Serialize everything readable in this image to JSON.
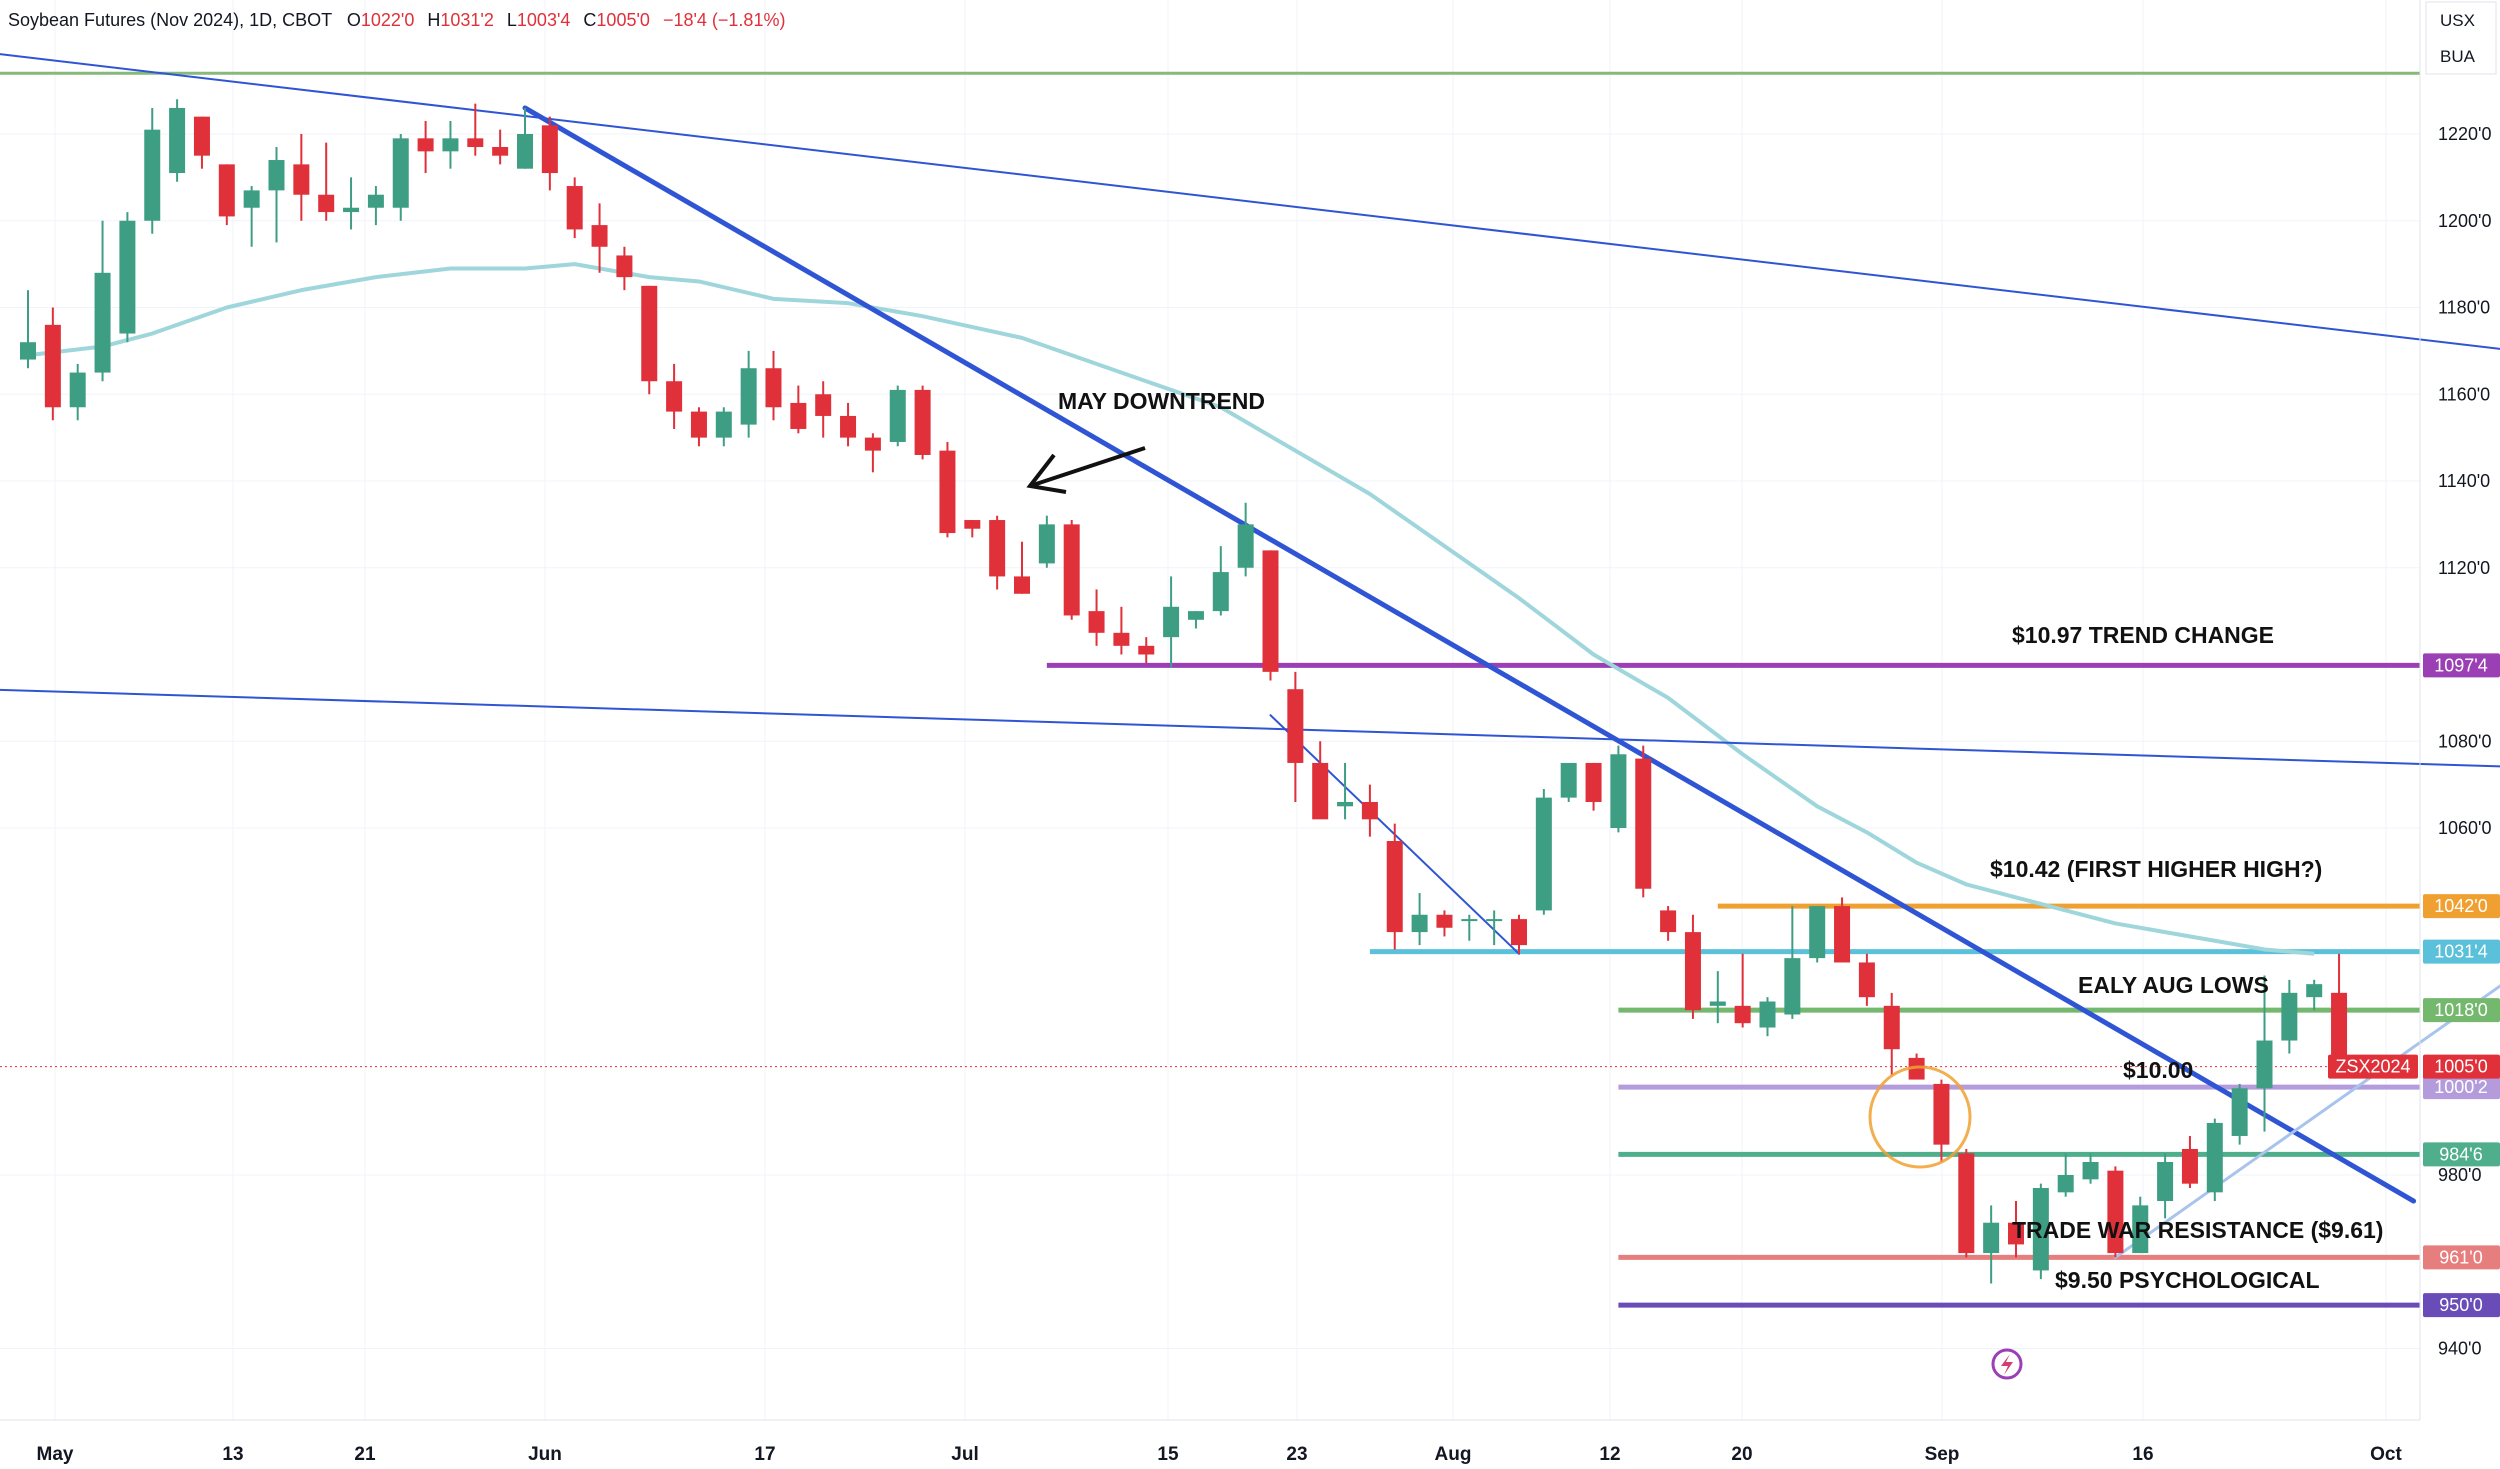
{
  "header": {
    "symbol": "Soybean Futures (Nov 2024), 1D, CBOT",
    "open_label": "O",
    "open": "1022'0",
    "high_label": "H",
    "high": "1031'2",
    "low_label": "L",
    "low": "1003'4",
    "close_label": "C",
    "close": "1005'0",
    "change": "−18'4 (−1.81%)"
  },
  "corner": {
    "currency": "USX",
    "unit": "BUA"
  },
  "colors": {
    "up": "#26a17b",
    "up_fill": "#3e9e84",
    "down": "#e0303a",
    "trend_blue": "#2f55d4",
    "ma": "#9fd6dc",
    "light_blue": "#a8c4ec",
    "purple": "#9b3fb5",
    "orange": "#f0a030",
    "cyan": "#5bc0d9",
    "green_line": "#74b86e",
    "lavender": "#b49cdc",
    "teal": "#4fae8c",
    "salmon": "#e77e7e",
    "violet": "#6a4cb8",
    "top_green": "#86b97a"
  },
  "chart_data": {
    "type": "candlestick",
    "y_axis_labels": [
      "1220'0",
      "1200'0",
      "1180'0",
      "1160'0",
      "1140'0",
      "1120'0",
      "1080'0",
      "1060'0",
      "980'0",
      "940'0"
    ],
    "y_axis_values": [
      1220,
      1200,
      1180,
      1160,
      1140,
      1120,
      1080,
      1060,
      980,
      940
    ],
    "x_axis_labels": [
      "May",
      "13",
      "21",
      "Jun",
      "17",
      "Jul",
      "15",
      "23",
      "Aug",
      "12",
      "20",
      "Sep",
      "16",
      "Oct"
    ],
    "x_axis_dates": [
      "2024-05-01",
      "2024-05-13",
      "2024-05-21",
      "2024-06-03",
      "2024-06-17",
      "2024-07-01",
      "2024-07-15",
      "2024-07-23",
      "2024-08-01",
      "2024-08-12",
      "2024-08-20",
      "2024-09-03",
      "2024-09-16",
      "2024-10-01"
    ],
    "candles": [
      {
        "o": 1168,
        "h": 1184,
        "l": 1166,
        "c": 1172
      },
      {
        "o": 1176,
        "h": 1180,
        "l": 1154,
        "c": 1157
      },
      {
        "o": 1157,
        "h": 1167,
        "l": 1154,
        "c": 1165
      },
      {
        "o": 1165,
        "h": 1200,
        "l": 1163,
        "c": 1188
      },
      {
        "o": 1174,
        "h": 1202,
        "l": 1172,
        "c": 1200
      },
      {
        "o": 1200,
        "h": 1226,
        "l": 1197,
        "c": 1221
      },
      {
        "o": 1211,
        "h": 1228,
        "l": 1209,
        "c": 1226
      },
      {
        "o": 1224,
        "h": 1224,
        "l": 1212,
        "c": 1215
      },
      {
        "o": 1213,
        "h": 1213,
        "l": 1199,
        "c": 1201
      },
      {
        "o": 1203,
        "h": 1208,
        "l": 1194,
        "c": 1207
      },
      {
        "o": 1207,
        "h": 1217,
        "l": 1195,
        "c": 1214
      },
      {
        "o": 1213,
        "h": 1220,
        "l": 1200,
        "c": 1206
      },
      {
        "o": 1206,
        "h": 1218,
        "l": 1200,
        "c": 1202
      },
      {
        "o": 1202,
        "h": 1210,
        "l": 1198,
        "c": 1203
      },
      {
        "o": 1203,
        "h": 1208,
        "l": 1199,
        "c": 1206
      },
      {
        "o": 1203,
        "h": 1220,
        "l": 1200,
        "c": 1219
      },
      {
        "o": 1219,
        "h": 1223,
        "l": 1211,
        "c": 1216
      },
      {
        "o": 1216,
        "h": 1223,
        "l": 1212,
        "c": 1219
      },
      {
        "o": 1219,
        "h": 1227,
        "l": 1215,
        "c": 1217
      },
      {
        "o": 1217,
        "h": 1221,
        "l": 1213,
        "c": 1215
      },
      {
        "o": 1212,
        "h": 1226,
        "l": 1212,
        "c": 1220
      },
      {
        "o": 1222,
        "h": 1224,
        "l": 1207,
        "c": 1211
      },
      {
        "o": 1208,
        "h": 1210,
        "l": 1196,
        "c": 1198
      },
      {
        "o": 1199,
        "h": 1204,
        "l": 1188,
        "c": 1194
      },
      {
        "o": 1192,
        "h": 1194,
        "l": 1184,
        "c": 1187
      },
      {
        "o": 1185,
        "h": 1185,
        "l": 1160,
        "c": 1163
      },
      {
        "o": 1163,
        "h": 1167,
        "l": 1152,
        "c": 1156
      },
      {
        "o": 1156,
        "h": 1157,
        "l": 1148,
        "c": 1150
      },
      {
        "o": 1150,
        "h": 1157,
        "l": 1148,
        "c": 1156
      },
      {
        "o": 1153,
        "h": 1170,
        "l": 1150,
        "c": 1166
      },
      {
        "o": 1166,
        "h": 1170,
        "l": 1154,
        "c": 1157
      },
      {
        "o": 1158,
        "h": 1162,
        "l": 1151,
        "c": 1152
      },
      {
        "o": 1160,
        "h": 1163,
        "l": 1150,
        "c": 1155
      },
      {
        "o": 1155,
        "h": 1158,
        "l": 1148,
        "c": 1150
      },
      {
        "o": 1150,
        "h": 1151,
        "l": 1142,
        "c": 1147
      },
      {
        "o": 1149,
        "h": 1162,
        "l": 1148,
        "c": 1161
      },
      {
        "o": 1161,
        "h": 1162,
        "l": 1145,
        "c": 1146
      },
      {
        "o": 1147,
        "h": 1149,
        "l": 1127,
        "c": 1128
      },
      {
        "o": 1131,
        "h": 1131,
        "l": 1127,
        "c": 1129
      },
      {
        "o": 1131,
        "h": 1132,
        "l": 1115,
        "c": 1118
      },
      {
        "o": 1118,
        "h": 1126,
        "l": 1114,
        "c": 1114
      },
      {
        "o": 1121,
        "h": 1132,
        "l": 1120,
        "c": 1130
      },
      {
        "o": 1130,
        "h": 1131,
        "l": 1108,
        "c": 1109
      },
      {
        "o": 1110,
        "h": 1115,
        "l": 1102,
        "c": 1105
      },
      {
        "o": 1105,
        "h": 1111,
        "l": 1100,
        "c": 1102
      },
      {
        "o": 1102,
        "h": 1104,
        "l": 1098,
        "c": 1100
      },
      {
        "o": 1104,
        "h": 1118,
        "l": 1097,
        "c": 1111
      },
      {
        "o": 1108,
        "h": 1110,
        "l": 1106,
        "c": 1110
      },
      {
        "o": 1110,
        "h": 1125,
        "l": 1109,
        "c": 1119
      },
      {
        "o": 1120,
        "h": 1135,
        "l": 1118,
        "c": 1130
      },
      {
        "o": 1124,
        "h": 1124,
        "l": 1094,
        "c": 1096
      },
      {
        "o": 1092,
        "h": 1096,
        "l": 1066,
        "c": 1075
      },
      {
        "o": 1075,
        "h": 1080,
        "l": 1063,
        "c": 1062
      },
      {
        "o": 1065,
        "h": 1075,
        "l": 1062,
        "c": 1066
      },
      {
        "o": 1066,
        "h": 1070,
        "l": 1058,
        "c": 1062
      },
      {
        "o": 1057,
        "h": 1061,
        "l": 1032,
        "c": 1036
      },
      {
        "o": 1036,
        "h": 1045,
        "l": 1033,
        "c": 1040
      },
      {
        "o": 1040,
        "h": 1041,
        "l": 1035,
        "c": 1037
      },
      {
        "o": 1039,
        "h": 1040,
        "l": 1034,
        "c": 1039
      },
      {
        "o": 1039,
        "h": 1041,
        "l": 1033,
        "c": 1039
      },
      {
        "o": 1039,
        "h": 1040,
        "l": 1031,
        "c": 1033
      },
      {
        "o": 1041,
        "h": 1069,
        "l": 1040,
        "c": 1067
      },
      {
        "o": 1067,
        "h": 1074,
        "l": 1066,
        "c": 1075
      },
      {
        "o": 1075,
        "h": 1075,
        "l": 1064,
        "c": 1066
      },
      {
        "o": 1060,
        "h": 1079,
        "l": 1059,
        "c": 1077
      },
      {
        "o": 1076,
        "h": 1079,
        "l": 1044,
        "c": 1046
      },
      {
        "o": 1041,
        "h": 1042,
        "l": 1034,
        "c": 1036
      },
      {
        "o": 1036,
        "h": 1040,
        "l": 1016,
        "c": 1018
      },
      {
        "o": 1019,
        "h": 1027,
        "l": 1015,
        "c": 1020
      },
      {
        "o": 1019,
        "h": 1031,
        "l": 1014,
        "c": 1015
      },
      {
        "o": 1014,
        "h": 1021,
        "l": 1012,
        "c": 1020
      },
      {
        "o": 1017,
        "h": 1042,
        "l": 1016,
        "c": 1030
      },
      {
        "o": 1030,
        "h": 1042,
        "l": 1029,
        "c": 1042
      },
      {
        "o": 1042,
        "h": 1044,
        "l": 1029,
        "c": 1029
      },
      {
        "o": 1029,
        "h": 1031,
        "l": 1019,
        "c": 1021
      },
      {
        "o": 1019,
        "h": 1022,
        "l": 1003,
        "c": 1009
      },
      {
        "o": 1007,
        "h": 1008,
        "l": 1003,
        "c": 1002
      },
      {
        "o": 1001,
        "h": 1002,
        "l": 983,
        "c": 987
      },
      {
        "o": 985,
        "h": 986,
        "l": 961,
        "c": 962
      },
      {
        "o": 962,
        "h": 973,
        "l": 955,
        "c": 969
      },
      {
        "o": 969,
        "h": 974,
        "l": 961,
        "c": 964
      },
      {
        "o": 958,
        "h": 978,
        "l": 956,
        "c": 977
      },
      {
        "o": 976,
        "h": 985,
        "l": 975,
        "c": 980
      },
      {
        "o": 979,
        "h": 985,
        "l": 978,
        "c": 983
      },
      {
        "o": 981,
        "h": 982,
        "l": 961,
        "c": 962
      },
      {
        "o": 962,
        "h": 975,
        "l": 962,
        "c": 973
      },
      {
        "o": 974,
        "h": 985,
        "l": 970,
        "c": 983
      },
      {
        "o": 986,
        "h": 989,
        "l": 977,
        "c": 978
      },
      {
        "o": 976,
        "h": 993,
        "l": 974,
        "c": 992
      },
      {
        "o": 989,
        "h": 1001,
        "l": 987,
        "c": 1000
      },
      {
        "o": 1000,
        "h": 1026,
        "l": 990,
        "c": 1011
      },
      {
        "o": 1011,
        "h": 1025,
        "l": 1008,
        "c": 1022
      },
      {
        "o": 1021,
        "h": 1025,
        "l": 1018,
        "c": 1024
      },
      {
        "o": 1022,
        "h": 1031,
        "l": 1003,
        "c": 1005
      }
    ],
    "moving_average": [
      [
        0,
        1169
      ],
      [
        3,
        1171
      ],
      [
        5,
        1174
      ],
      [
        8,
        1180
      ],
      [
        11,
        1184
      ],
      [
        14,
        1187
      ],
      [
        17,
        1189
      ],
      [
        20,
        1189
      ],
      [
        22,
        1190
      ],
      [
        25,
        1187
      ],
      [
        27,
        1186
      ],
      [
        30,
        1182
      ],
      [
        33,
        1181
      ],
      [
        36,
        1178
      ],
      [
        40,
        1173
      ],
      [
        45,
        1163
      ],
      [
        48,
        1157
      ],
      [
        51,
        1147
      ],
      [
        54,
        1137
      ],
      [
        57,
        1125
      ],
      [
        60,
        1113
      ],
      [
        63,
        1100
      ],
      [
        66,
        1090
      ],
      [
        69,
        1077
      ],
      [
        72,
        1065
      ],
      [
        74,
        1059
      ],
      [
        76,
        1052
      ],
      [
        78,
        1047
      ],
      [
        80,
        1044
      ],
      [
        82,
        1041
      ],
      [
        84,
        1038
      ],
      [
        86,
        1036
      ],
      [
        88,
        1034
      ],
      [
        90,
        1032
      ],
      [
        92,
        1031
      ]
    ],
    "price_levels": [
      {
        "label": "1097'4",
        "value": 1097.5,
        "color": "#9b3fb5",
        "from_bar": 41
      },
      {
        "label": "1042'0",
        "value": 1042,
        "color": "#f0a030",
        "from_bar": 68
      },
      {
        "label": "1031'4",
        "value": 1031.5,
        "color": "#5bc0d9",
        "from_bar": 54
      },
      {
        "label": "1018'0",
        "value": 1018,
        "color": "#74b86e",
        "from_bar": 64
      },
      {
        "label": "1000'2",
        "value": 1000.25,
        "color": "#b49cdc",
        "from_bar": 64
      },
      {
        "label": "984'6",
        "value": 984.75,
        "color": "#4fae8c",
        "from_bar": 64
      },
      {
        "label": "961'0",
        "value": 961,
        "color": "#e77e7e",
        "from_bar": 64
      },
      {
        "label": "950'0",
        "value": 950,
        "color": "#6a4cb8",
        "from_bar": 64
      }
    ],
    "current_price": {
      "label": "1005'0",
      "value": 1005,
      "symbol": "ZSX2024"
    },
    "top_level": {
      "value": 1234
    },
    "trend_lines": [
      {
        "name": "long_downtrend_upper",
        "p1": [
          -2,
          1239
        ],
        "p2": [
          112,
          1162
        ],
        "color": "#2f55d4",
        "width": 2
      },
      {
        "name": "long_downtrend_lower",
        "p1": [
          -2,
          1092
        ],
        "p2": [
          112,
          1072
        ],
        "color": "#2f55d4",
        "width": 2
      },
      {
        "name": "may_downtrend",
        "p1": [
          20,
          1226
        ],
        "p2": [
          96,
          974
        ],
        "color": "#2f55d4",
        "width": 5
      },
      {
        "name": "july_minor",
        "p1": [
          50,
          1086
        ],
        "p2": [
          60,
          1031
        ],
        "color": "#2f55d4",
        "width": 2
      },
      {
        "name": "uptrend",
        "p1": [
          84,
          961
        ],
        "p2": [
          108,
          1058
        ],
        "color": "#a8c4ec",
        "width": 3
      }
    ],
    "annotations": [
      {
        "text": "MAY DOWNTREND"
      },
      {
        "text": "$10.97 TREND CHANGE"
      },
      {
        "text": "$10.42 (FIRST HIGHER HIGH?)"
      },
      {
        "text": "EALY AUG LOWS"
      },
      {
        "text": "$10.00"
      },
      {
        "text": "TRADE WAR RESISTANCE ($9.61)"
      },
      {
        "text": "$9.50 PSYCHOLOGICAL"
      }
    ]
  }
}
